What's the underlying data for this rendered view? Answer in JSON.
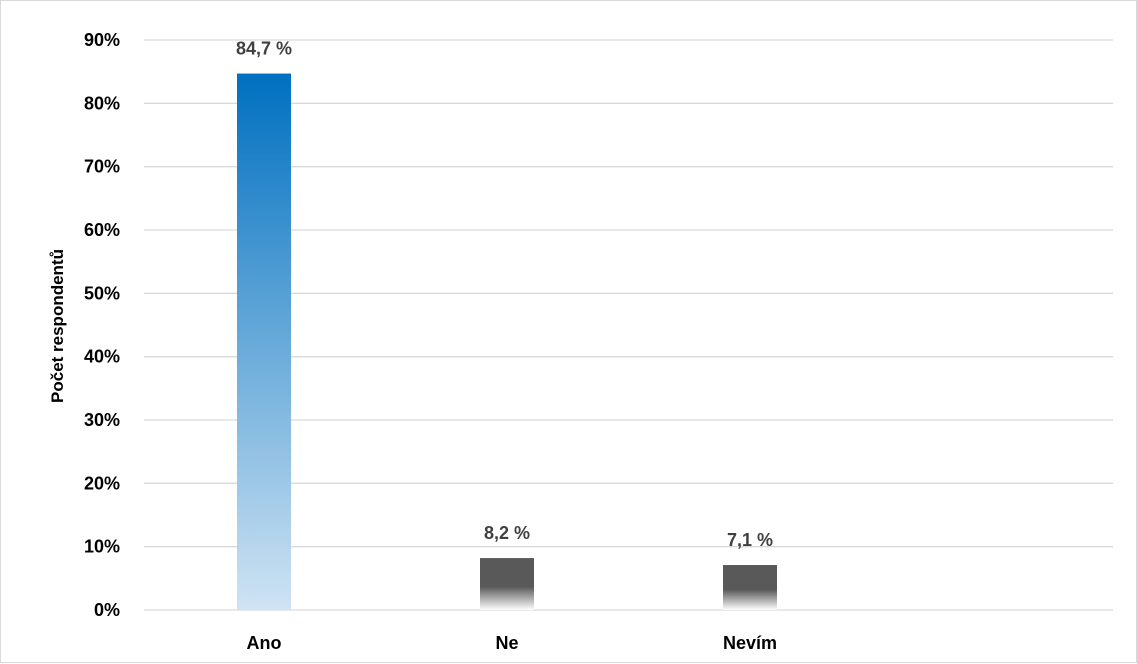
{
  "chart_data": {
    "type": "bar",
    "title": "",
    "xlabel": "",
    "ylabel": "Počet respondentů",
    "categories": [
      "Ano",
      "Ne",
      "Nevím"
    ],
    "values": [
      84.7,
      8.2,
      7.1
    ],
    "data_labels": [
      "84,7 %",
      "8,2 %",
      "7,1 %"
    ],
    "ylim": [
      0,
      90
    ],
    "y_ticks": [
      0,
      10,
      20,
      30,
      40,
      50,
      60,
      70,
      80,
      90
    ],
    "y_tick_labels": [
      "0%",
      "10%",
      "20%",
      "30%",
      "40%",
      "50%",
      "60%",
      "70%",
      "80%",
      "90%"
    ],
    "grid": true,
    "legend": "none",
    "bar_colors": [
      {
        "top": "#0070c0",
        "bottom": "#cfe3f3"
      },
      {
        "top": "#595959",
        "bottom": "#ffffff"
      },
      {
        "top": "#595959",
        "bottom": "#ffffff"
      }
    ],
    "gridline_color": "#d9d9d9"
  }
}
